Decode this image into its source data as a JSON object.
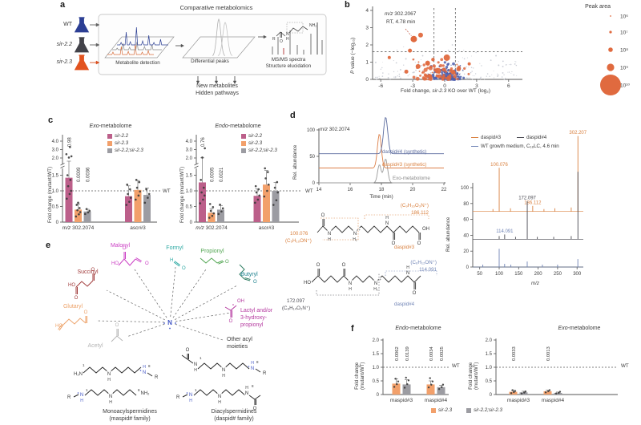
{
  "panels": {
    "a": "a",
    "b": "b",
    "c": "c",
    "d": "d",
    "e": "e",
    "f": "f"
  },
  "atoms": {
    "O": "O",
    "N": "N",
    "H": "H",
    "H2": "H₂",
    "HO": "HO",
    "OH": "OH",
    "NH2": "NH₂",
    "H2N": "H₂N",
    "R": "R",
    "plus": "+",
    "n1": "1",
    "n8": "8"
  },
  "panel_a": {
    "title": "Comparative metabolomics",
    "samples": [
      {
        "name": "WT",
        "color": "#2c3f94",
        "italic": false
      },
      {
        "name": "sir-2.2",
        "color": "#43434a",
        "italic": true
      },
      {
        "name": "sir-2.3",
        "color": "#e2531f",
        "italic": true
      }
    ],
    "step1": "Metabolite detection",
    "step2": "Differential peaks",
    "step3a": "MS/MS spectra",
    "step3b": "Structure elucidation",
    "out1": "New metabolites",
    "out2": "Hidden pathways"
  },
  "panel_b": {
    "annotation_italic": "m/z",
    "annotation_rest": " 302.2067",
    "annotation2": "RT, 4.78 min",
    "xlabel_pre": "Fold change, ",
    "xlabel_gene": "sir-2.3",
    "xlabel_post": " KO over WT (log₂)",
    "ylabel_italic": "P",
    "ylabel_rest": " value (−log₁₀)",
    "legend_title": "Peak area"
  },
  "panel_c": {
    "exo_prefix": "Exo",
    "endo_prefix": "Endo",
    "title_rest": "-metabolome",
    "ylabel": "Fold change (mutant/WT)",
    "wt": "WT",
    "legend": [
      {
        "label": "sir-2.2",
        "color": "#bc5f8a"
      },
      {
        "label": "sir-2.3",
        "color": "#f2a06b"
      },
      {
        "label": "sir-2.2;sir-2.3",
        "color": "#9c9ca2"
      }
    ]
  },
  "panel_d": {
    "chrom_title_italic": "m/z",
    "chrom_title_rest": " 302.2074",
    "chrom_xlabel": "Time (min)",
    "chrom_ylabel": "Rel. abundance",
    "trace_labels": [
      {
        "text": "daspid#4 (synthetic)",
        "color": "#5b6b9e"
      },
      {
        "text": "daspid#3 (synthetic)",
        "color": "#d9803f"
      },
      {
        "text": "Exo-metabolome",
        "color": "#8a8a8a"
      }
    ],
    "msms_ylabel": "Rel. abundance",
    "msms_xlabel_italic": "m/z",
    "legend": [
      {
        "label": "daspid#3",
        "color": "#d9803f"
      },
      {
        "label": "daspid#4",
        "color": "#4a4a52"
      },
      {
        "label": "WT growth medium, C₁₈LC, 4.6 min",
        "color": "#6f83b5"
      }
    ],
    "s3": {
      "name": "daspid#3",
      "color": "#d9803f",
      "fragL1": "100.076",
      "fragL2": "(C₅H₁₀ON⁺)",
      "fragR1": "(C₉H₁₆O₃N⁺)",
      "fragR2": "186.112"
    },
    "s4": {
      "name": "daspid#4",
      "color": "#6f83b5",
      "darkcolor": "#4a4a52",
      "fragL1": "172.097",
      "fragL2": "(C₈H₁₄O₂N⁺)",
      "fragR1": "(C₆H₁₂ON⁺)",
      "fragR2": "114.091"
    }
  },
  "panel_e": {
    "moieties": [
      {
        "id": "malonyl",
        "name": "Malonyl",
        "color": "#cb3fc4"
      },
      {
        "id": "formyl",
        "name": "Formyl",
        "color": "#2ba8a2"
      },
      {
        "id": "propionyl",
        "name": "Propionyl",
        "color": "#53a653"
      },
      {
        "id": "butyryl",
        "name": "Butyryl",
        "color": "#1a7f8c"
      },
      {
        "id": "lactyl",
        "name": "Lactyl and/or 3-hydroxy-propionyl",
        "lines": [
          "Lactyl and/or",
          "3-hydroxy-",
          "propionyl"
        ],
        "color": "#b5399f"
      },
      {
        "id": "other",
        "name": "Other acyl moieties",
        "lines": [
          "Other acyl",
          "moieties"
        ],
        "color": "#333333"
      },
      {
        "id": "acetyl",
        "name": "Acetyl",
        "color": "#b4b4b4"
      },
      {
        "id": "glutaryl",
        "name": "Glutaryl",
        "color": "#eda269"
      },
      {
        "id": "succinyl",
        "name": "Succinyl",
        "color": "#a03a3a"
      }
    ],
    "cap1a": "Monoacylspermidines",
    "cap1b": "(maspid# family)",
    "cap2a": "Diacylspermidines",
    "cap2b": "(daspid# family)",
    "center_color": "#4256c5"
  },
  "panel_f": {
    "endo_prefix": "Endo",
    "exo_prefix": "Exo",
    "title_rest": "-metabolome",
    "ylabel1": "Fold change",
    "ylabel2": "(mutant/WT)",
    "wt": "WT",
    "legend": [
      {
        "label": "sir-2.3",
        "color": "#f2a06b"
      },
      {
        "label": "sir-2.2;sir-2.3",
        "color": "#9c9ca2"
      }
    ]
  },
  "chart_data": [
    {
      "id": "volcano",
      "type": "scatter",
      "title": "",
      "xlabel": "Fold change, sir-2.3 KO over WT (log2)",
      "ylabel": "P value (-log10)",
      "xlim": [
        -7.2,
        7.2
      ],
      "ylim": [
        0,
        4
      ],
      "xticks": [
        -6,
        -3,
        0,
        3,
        6
      ],
      "yticks": [
        0,
        1,
        2,
        3,
        4
      ],
      "sig_line_y": 1.6,
      "sig_lines_x": [
        -1,
        1
      ],
      "annotated_point": {
        "x": -2.9,
        "y": 2.34,
        "r": 4,
        "label1": "m/z 302.2067",
        "label2": "RT, 4.78 min"
      },
      "highlight_points": [
        [
          -2.26,
          2.57,
          3
        ],
        [
          -3.26,
          1.67,
          2.5
        ],
        [
          -5.2,
          1.27,
          2
        ],
        [
          0.2,
          1.26,
          4
        ],
        [
          -1.6,
          0.95,
          3
        ],
        [
          -2.5,
          0.75,
          3
        ],
        [
          1.3,
          0.6,
          2.8
        ],
        [
          2.3,
          0.9,
          2
        ],
        [
          -0.6,
          0.5,
          3.5
        ],
        [
          0.8,
          0.42,
          3
        ],
        [
          -3.6,
          0.45,
          2.5
        ],
        [
          -1.1,
          1.15,
          2.2
        ]
      ],
      "point_clouds": [
        {
          "n": 170,
          "color": "#c2c6cf",
          "xr": [
            -6.6,
            6.8
          ],
          "yr": [
            0,
            2.1
          ],
          "rr": [
            0.4,
            1.0
          ]
        },
        {
          "n": 150,
          "color": "#4e5fae",
          "xr": [
            -1.9,
            2.2
          ],
          "yr": [
            0,
            1.05
          ],
          "rr": [
            0.5,
            2.0
          ]
        },
        {
          "n": 70,
          "color": "#e06a3f",
          "xr": [
            -3.9,
            2.7
          ],
          "yr": [
            0,
            1.4
          ],
          "rr": [
            0.9,
            2.6
          ]
        }
      ],
      "legend": {
        "title": "Peak area",
        "entries": [
          {
            "label": "10⁶",
            "r": 0.9
          },
          {
            "label": "10⁷",
            "r": 1.6
          },
          {
            "label": "10⁸",
            "r": 2.8
          },
          {
            "label": "10⁹",
            "r": 4.6
          },
          {
            "label": "10¹⁰",
            "r": 13
          }
        ]
      },
      "point_color": "#e06a3f"
    },
    {
      "id": "c-exo",
      "type": "bar",
      "title": "Exo-metabolome",
      "ylabel": "Fold change (mutant/WT)",
      "broken_axis": true,
      "yticks_low": [
        0,
        0.5,
        1.0,
        1.5
      ],
      "yticks_high": [
        2.0,
        3.0,
        4.0
      ],
      "wt_line": 1.0,
      "categories": [
        {
          "italic": "m/z",
          "rest": " 302.2074"
        },
        {
          "italic": "",
          "rest": "ascr#3"
        }
      ],
      "series": [
        {
          "name": "sir-2.2",
          "color": "#bc5f8a",
          "values": [
            1.42,
            0.83
          ],
          "errors": [
            0.55,
            0.33
          ],
          "pvalues": [
            "0.98",
            null
          ],
          "dots": [
            [
              0.75,
              0.9,
              1.0,
              1.15,
              1.35,
              1.5,
              2.05,
              2.2,
              2.45,
              3.3
            ],
            [
              0.55,
              0.65,
              0.78,
              0.9,
              1.05,
              1.2
            ]
          ]
        },
        {
          "name": "sir-2.3",
          "color": "#f2a06b",
          "values": [
            0.4,
            1.03
          ],
          "errors": [
            0.18,
            0.3
          ],
          "pvalues": [
            "0.0009",
            null
          ],
          "dots": [
            [
              0.18,
              0.25,
              0.32,
              0.38,
              0.45,
              0.55,
              0.62
            ],
            [
              0.72,
              0.85,
              0.98,
              1.1,
              1.28,
              1.35
            ]
          ]
        },
        {
          "name": "sir-2.2;sir-2.3",
          "color": "#9c9ca2",
          "values": [
            0.34,
            0.87
          ],
          "errors": [
            0.07,
            0.22
          ],
          "pvalues": [
            "0.0036",
            null
          ],
          "dots": [
            [
              0.26,
              0.31,
              0.36,
              0.42
            ],
            [
              0.62,
              0.78,
              0.9,
              1.05
            ]
          ]
        }
      ]
    },
    {
      "id": "c-endo",
      "type": "bar",
      "title": "Endo-metabolome",
      "ylabel": "Fold change (mutant/WT)",
      "broken_axis": true,
      "yticks_low": [
        0,
        0.5,
        1.0,
        1.5
      ],
      "yticks_high": [
        2.0,
        3.0,
        4.0
      ],
      "wt_line": 1.0,
      "categories": [
        {
          "italic": "m/z",
          "rest": " 302.2074"
        },
        {
          "italic": "",
          "rest": "ascr#3"
        }
      ],
      "series": [
        {
          "name": "sir-2.2",
          "color": "#bc5f8a",
          "values": [
            1.27,
            0.84
          ],
          "errors": [
            0.75,
            0.22
          ],
          "pvalues": [
            "0.76",
            null
          ],
          "dots": [
            [
              0.6,
              0.72,
              0.85,
              0.95,
              1.1,
              1.35,
              2.05,
              3.15
            ],
            [
              0.62,
              0.72,
              0.85,
              0.95,
              1.05,
              1.15
            ]
          ]
        },
        {
          "name": "sir-2.3",
          "color": "#f2a06b",
          "values": [
            0.3,
            1.2
          ],
          "errors": [
            0.13,
            0.45
          ],
          "pvalues": [
            "0.0005",
            null
          ],
          "dots": [
            [
              0.14,
              0.2,
              0.28,
              0.36,
              0.48,
              0.58
            ],
            [
              0.82,
              1.0,
              1.2,
              1.4,
              1.6,
              1.72
            ]
          ]
        },
        {
          "name": "sir-2.2;sir-2.3",
          "color": "#9c9ca2",
          "values": [
            0.4,
            1.0
          ],
          "errors": [
            0.13,
            0.27
          ],
          "pvalues": [
            "0.0021",
            null
          ],
          "dots": [
            [
              0.26,
              0.34,
              0.44,
              0.56
            ],
            [
              0.55,
              0.7,
              0.95,
              1.1,
              1.28
            ]
          ]
        }
      ]
    },
    {
      "id": "d-chrom",
      "type": "line",
      "title": "m/z 302.2074",
      "xlabel": "Time (min)",
      "ylabel": "Rel. abundance",
      "xticks": [
        14,
        16,
        18,
        20,
        22
      ],
      "yticks": [
        0,
        50,
        100
      ],
      "traces": [
        {
          "name": "daspid#4 (synthetic)",
          "color": "#5b6b9e",
          "baseline": 55,
          "peaks": [
            {
              "t": 18.27,
              "h": 69,
              "w": 0.135
            }
          ]
        },
        {
          "name": "daspid#3 (synthetic)",
          "color": "#dd8049",
          "baseline": 28,
          "peaks": [
            {
              "t": 17.87,
              "h": 64,
              "w": 0.125
            }
          ]
        },
        {
          "name": "Exo-metabolome",
          "color": "#9b9b9b",
          "baseline": 0,
          "peaks": [
            {
              "t": 17.87,
              "h": 34,
              "w": 0.115
            },
            {
              "t": 18.27,
              "h": 45,
              "w": 0.125
            }
          ]
        }
      ]
    },
    {
      "id": "d-msms",
      "type": "bar",
      "xlabel": "m/z",
      "ylabel": "Rel. abundance",
      "xticks": [
        50,
        100,
        150,
        200,
        250,
        300
      ],
      "yticks": [
        0,
        20,
        40,
        60,
        80,
        100
      ],
      "traces": [
        {
          "name": "daspid#3",
          "color": "#d9803f",
          "offset": 70,
          "peaks": [
            {
              "mz": 84,
              "h": 3
            },
            {
              "mz": 100.076,
              "h": 55,
              "label": "100.076"
            },
            {
              "mz": 129,
              "h": 4
            },
            {
              "mz": 186.112,
              "h": 7,
              "label": "186.112"
            },
            {
              "mz": 215,
              "h": 3
            },
            {
              "mz": 243,
              "h": 4
            },
            {
              "mz": 285,
              "h": 5
            },
            {
              "mz": 302.207,
              "h": 95,
              "label": "302.207"
            }
          ]
        },
        {
          "name": "daspid#4",
          "color": "#4a4a52",
          "offset": 35,
          "peaks": [
            {
              "mz": 100,
              "h": 4
            },
            {
              "mz": 114.091,
              "h": 6,
              "label": "114.091",
              "lc": "#6f83b5"
            },
            {
              "mz": 142,
              "h": 3
            },
            {
              "mz": 172.097,
              "h": 48,
              "label": "172.097"
            },
            {
              "mz": 198,
              "h": 3
            },
            {
              "mz": 240,
              "h": 3
            },
            {
              "mz": 285,
              "h": 4
            },
            {
              "mz": 302.207,
              "h": 85
            }
          ]
        },
        {
          "name": "WT growth medium",
          "color": "#6f83b5",
          "offset": 0,
          "peaks": [
            {
              "mz": 58,
              "h": 3
            },
            {
              "mz": 100,
              "h": 23
            },
            {
              "mz": 114,
              "h": 4
            },
            {
              "mz": 130,
              "h": 3
            },
            {
              "mz": 172,
              "h": 7
            },
            {
              "mz": 211,
              "h": 3
            },
            {
              "mz": 250,
              "h": 3
            },
            {
              "mz": 302,
              "h": 10
            }
          ]
        }
      ]
    },
    {
      "id": "f-endo",
      "type": "bar",
      "title": "Endo-metabolome",
      "ylim": [
        0,
        2.0
      ],
      "yticks": [
        0,
        0.5,
        1.0,
        1.5,
        2.0
      ],
      "wt_line": 1.0,
      "categories": [
        "maspid#3",
        "maspid#4"
      ],
      "series": [
        {
          "name": "sir-2.3",
          "color": "#f2a06b",
          "values": [
            0.4,
            0.37
          ],
          "errors": [
            0.17,
            0.13
          ],
          "pvalues": [
            "0.0062",
            "0.0034"
          ],
          "dots": [
            [
              0.28,
              0.38,
              0.48,
              0.58
            ],
            [
              0.26,
              0.36,
              0.48,
              0.6
            ]
          ]
        },
        {
          "name": "sir-2.2;sir-2.3",
          "color": "#9c9ca2",
          "values": [
            0.37,
            0.27
          ],
          "errors": [
            0.17,
            0.07
          ],
          "pvalues": [
            "0.0139",
            "0.0025"
          ],
          "dots": [
            [
              0.25,
              0.38,
              0.52,
              0.62
            ],
            [
              0.2,
              0.27,
              0.36
            ]
          ]
        }
      ]
    },
    {
      "id": "f-exo",
      "type": "bar",
      "title": "Exo-metabolome",
      "ylim": [
        0,
        2.0
      ],
      "yticks": [
        0,
        0.5,
        1.0,
        1.5,
        2.0
      ],
      "wt_line": 1.0,
      "categories": [
        "maspid#3",
        "maspid#4"
      ],
      "series": [
        {
          "name": "sir-2.3",
          "color": "#f2a06b",
          "values": [
            0.1,
            0.12
          ],
          "errors": [
            0.05,
            0.04
          ],
          "pvalues": [
            "0.0033",
            "0.0013"
          ],
          "dots": [
            [
              0.05,
              0.09,
              0.13,
              0.16
            ],
            [
              0.08,
              0.12,
              0.16
            ]
          ]
        },
        {
          "name": "sir-2.2;sir-2.3",
          "color": "#9c9ca2",
          "values": [
            0.08,
            0.06
          ],
          "errors": [
            0.04,
            0.03
          ],
          "pvalues": [
            null,
            null
          ],
          "dots": [
            [
              0.04,
              0.07,
              0.11
            ],
            [
              0.04,
              0.06,
              0.1
            ]
          ]
        }
      ]
    }
  ]
}
